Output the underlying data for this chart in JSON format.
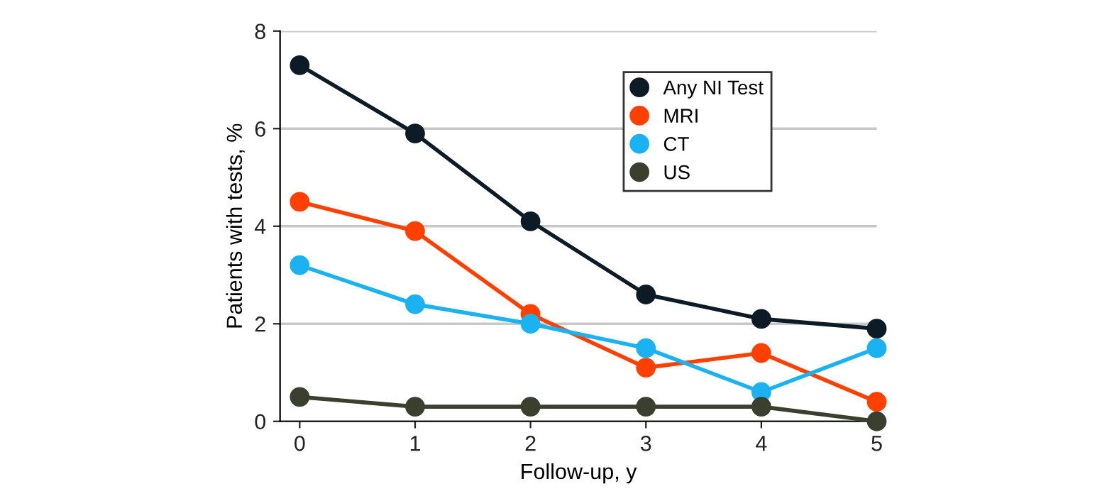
{
  "chart_data": {
    "type": "line",
    "xlabel": "Follow-up, y",
    "ylabel": "Patients with tests, %",
    "x": [
      0,
      1,
      2,
      3,
      4,
      5
    ],
    "series": [
      {
        "name": "Any NI Test",
        "color": "#0d1b26",
        "values": [
          7.3,
          5.9,
          4.1,
          2.6,
          2.1,
          1.9
        ]
      },
      {
        "name": "MRI",
        "color": "#ff4000",
        "values": [
          4.5,
          3.9,
          2.2,
          1.1,
          1.4,
          0.4
        ]
      },
      {
        "name": "CT",
        "color": "#1ab2f0",
        "values": [
          3.2,
          2.4,
          2.0,
          1.5,
          0.6,
          1.5
        ]
      },
      {
        "name": "US",
        "color": "#3a3f2e",
        "values": [
          0.5,
          0.3,
          0.3,
          0.3,
          0.3,
          0.0
        ]
      }
    ],
    "xlim": [
      -0.17,
      5
    ],
    "xticks": [
      0,
      1,
      2,
      3,
      4,
      5
    ],
    "ylim": [
      0,
      8
    ],
    "yticks": [
      0,
      2,
      4,
      6,
      8
    ],
    "grid": "y",
    "legend": "top right",
    "marker": "circle",
    "line_style": "solid"
  }
}
